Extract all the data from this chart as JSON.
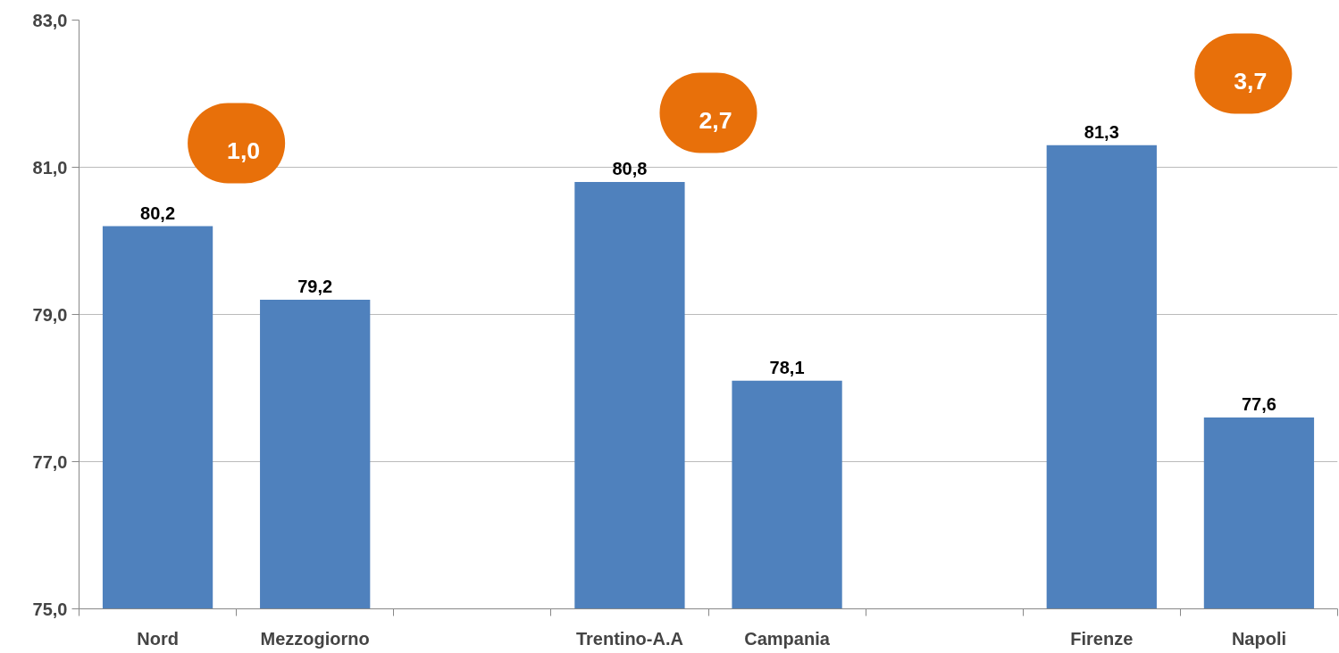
{
  "chart_data": {
    "type": "bar",
    "categories": [
      "Nord",
      "Mezzogiorno",
      null,
      "Trentino-A.A",
      "Campania",
      null,
      "Firenze",
      "Napoli"
    ],
    "values": [
      80.2,
      79.2,
      null,
      80.8,
      78.1,
      null,
      81.3,
      77.6
    ],
    "value_labels": [
      "80,2",
      "79,2",
      null,
      "80,8",
      "78,1",
      null,
      "81,3",
      "77,6"
    ],
    "color": "#4f81bd",
    "ylim": [
      75,
      83
    ],
    "yticks": [
      {
        "value": 75,
        "label": "75,0"
      },
      {
        "value": 77,
        "label": "77,0"
      },
      {
        "value": 79,
        "label": "79,0"
      },
      {
        "value": 81,
        "label": "81,0"
      },
      {
        "value": 83,
        "label": "83,0"
      }
    ],
    "grid": "y",
    "annotations": [
      "1,0",
      "2,7",
      "3,7"
    ]
  }
}
